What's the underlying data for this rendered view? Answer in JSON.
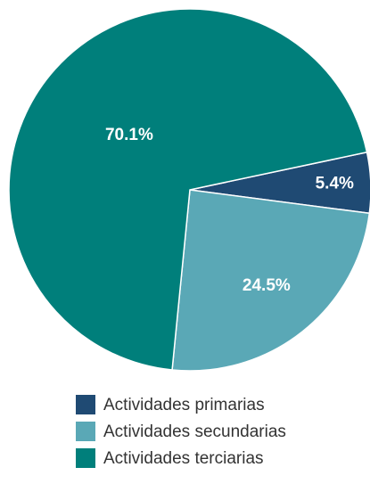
{
  "chart_data": {
    "type": "pie",
    "categories": [
      "Actividades primarias",
      "Actividades secundarias",
      "Actividades terciarias"
    ],
    "values": [
      5.4,
      24.5,
      70.1
    ],
    "value_labels": [
      "5.4%",
      "24.5%",
      "70.1%"
    ],
    "colors": [
      "#1f4a73",
      "#5aa8b6",
      "#007f7b"
    ]
  }
}
